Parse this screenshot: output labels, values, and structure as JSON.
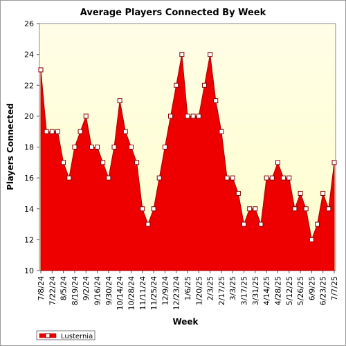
{
  "chart_data": {
    "type": "area",
    "title": "Average Players Connected By Week",
    "xlabel": "Week",
    "ylabel": "Players Connected",
    "ylim": [
      10,
      26
    ],
    "yticks": [
      10,
      12,
      14,
      16,
      18,
      20,
      22,
      24,
      26
    ],
    "grid": false,
    "legend_position": "bottom-left",
    "x_tick_labels": [
      "7/8/24",
      "7/22/24",
      "8/5/24",
      "8/19/24",
      "9/2/24",
      "9/16/24",
      "9/30/24",
      "10/14/24",
      "10/28/24",
      "11/11/24",
      "11/25/24",
      "12/9/24",
      "12/23/24",
      "1/6/25",
      "1/20/25",
      "2/3/25",
      "2/17/25",
      "3/3/25",
      "3/17/25",
      "3/31/25",
      "4/14/25",
      "4/28/25",
      "5/12/25",
      "5/26/25",
      "6/9/25",
      "6/23/25",
      "7/7/25"
    ],
    "colors": {
      "fill": "#ee0000",
      "line": "#aa0000",
      "background_top": "#fffde6",
      "background_bottom": "#ffffcc"
    },
    "series": [
      {
        "name": "Lusternia",
        "x": [
          "7/8/24",
          "7/15/24",
          "7/22/24",
          "7/29/24",
          "8/5/24",
          "8/12/24",
          "8/19/24",
          "8/26/24",
          "9/2/24",
          "9/9/24",
          "9/16/24",
          "9/23/24",
          "9/30/24",
          "10/7/24",
          "10/14/24",
          "10/21/24",
          "10/28/24",
          "11/4/24",
          "11/11/24",
          "11/18/24",
          "11/25/24",
          "12/2/24",
          "12/9/24",
          "12/16/24",
          "12/23/24",
          "12/30/24",
          "1/6/25",
          "1/13/25",
          "1/20/25",
          "1/27/25",
          "2/3/25",
          "2/10/25",
          "2/17/25",
          "2/24/25",
          "3/3/25",
          "3/10/25",
          "3/17/25",
          "3/24/25",
          "3/31/25",
          "4/7/25",
          "4/14/25",
          "4/21/25",
          "4/28/25",
          "5/5/25",
          "5/12/25",
          "5/19/25",
          "5/26/25",
          "6/2/25",
          "6/9/25",
          "6/16/25",
          "6/23/25",
          "6/30/25",
          "7/7/25"
        ],
        "values": [
          23,
          19,
          19,
          19,
          17,
          16,
          18,
          19,
          20,
          18,
          18,
          17,
          16,
          18,
          21,
          19,
          18,
          17,
          14,
          13,
          14,
          16,
          18,
          20,
          22,
          24,
          20,
          20,
          20,
          22,
          24,
          21,
          19,
          16,
          16,
          15,
          13,
          14,
          14,
          13,
          16,
          16,
          17,
          16,
          16,
          14,
          15,
          14,
          12,
          13,
          15,
          14,
          17
        ]
      }
    ]
  }
}
